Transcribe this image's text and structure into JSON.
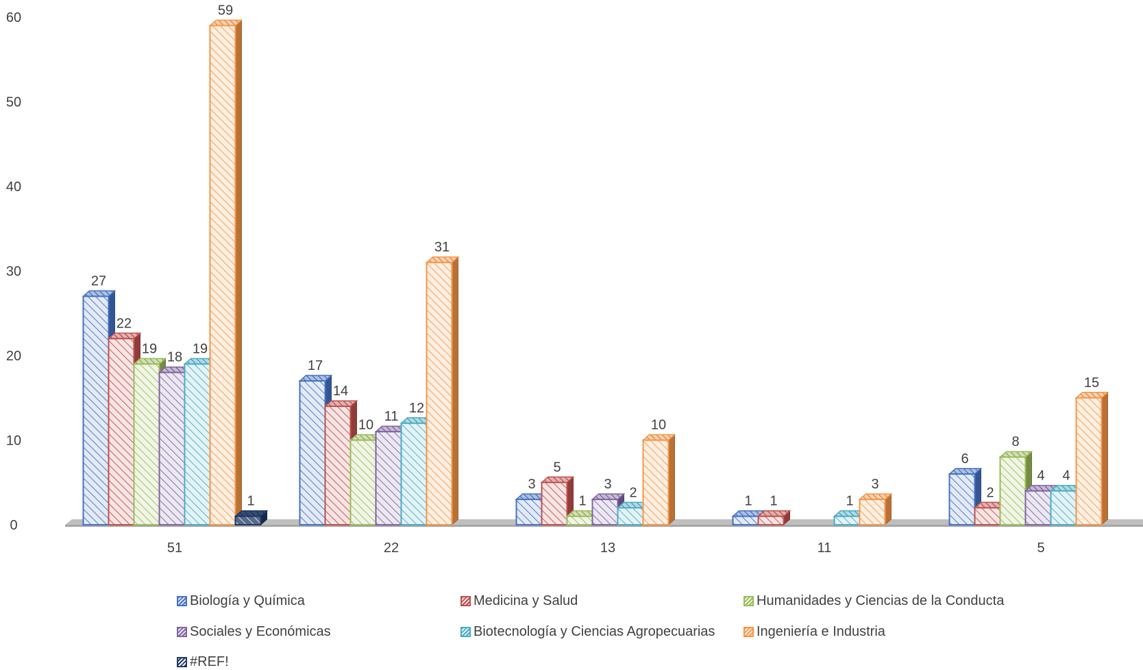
{
  "chart_data": {
    "type": "bar",
    "categories": [
      "51",
      "22",
      "13",
      "11",
      "5"
    ],
    "ylim": [
      0,
      60
    ],
    "yticks": [
      0,
      10,
      20,
      30,
      40,
      50,
      60
    ],
    "title": "",
    "xlabel": "",
    "ylabel": "",
    "grid": false,
    "legend_position": "bottom",
    "series": [
      {
        "name": "Biología y Química",
        "color": "#4472C4",
        "values": [
          27,
          17,
          3,
          1,
          6
        ]
      },
      {
        "name": "Medicina y Salud",
        "color": "#C0504D",
        "values": [
          22,
          14,
          5,
          1,
          2
        ]
      },
      {
        "name": "Humanidades y Ciencias de la Conducta",
        "color": "#9BBB59",
        "values": [
          19,
          10,
          1,
          null,
          8
        ]
      },
      {
        "name": "Sociales y Económicas",
        "color": "#8064A2",
        "values": [
          18,
          11,
          3,
          null,
          4
        ]
      },
      {
        "name": "Biotecnología y Ciencias Agropecuarias",
        "color": "#4BACC6",
        "values": [
          19,
          12,
          2,
          1,
          4
        ]
      },
      {
        "name": "Ingeniería e Industria",
        "color": "#F79646",
        "values": [
          59,
          31,
          10,
          3,
          15
        ]
      },
      {
        "name": "#REF!",
        "color": "#1F3864",
        "values": [
          1,
          null,
          null,
          null,
          null
        ]
      }
    ]
  }
}
